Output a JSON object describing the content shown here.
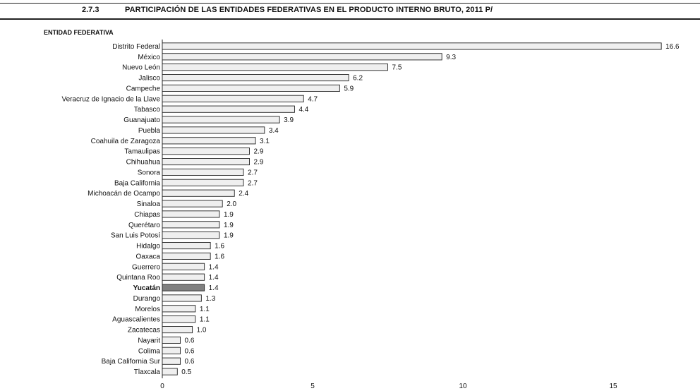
{
  "header": {
    "section_number": "2.7.3",
    "title": "PARTICIPACIÓN DE LAS ENTIDADES FEDERATIVAS EN EL PRODUCTO INTERNO BRUTO, 2011 P/"
  },
  "colors": {
    "bar_fill": "#efefef",
    "highlight_fill": "#808080",
    "stroke": "#222222"
  },
  "chart_data": {
    "type": "bar",
    "orientation": "horizontal",
    "category_header": "ENTIDAD FEDERATIVA",
    "categories": [
      "Distrito Federal",
      "México",
      "Nuevo León",
      "Jalisco",
      "Campeche",
      "Veracruz de Ignacio de la Llave",
      "Tabasco",
      "Guanajuato",
      "Puebla",
      "Coahuila de Zaragoza",
      "Tamaulipas",
      "Chihuahua",
      "Sonora",
      "Baja California",
      "Michoacán de Ocampo",
      "Sinaloa",
      "Chiapas",
      "Querétaro",
      "San Luis Potosí",
      "Hidalgo",
      "Oaxaca",
      "Guerrero",
      "Quintana Roo",
      "Yucatán",
      "Durango",
      "Morelos",
      "Aguascalientes",
      "Zacatecas",
      "Nayarit",
      "Colima",
      "Baja California Sur",
      "Tlaxcala"
    ],
    "values": [
      16.6,
      9.3,
      7.5,
      6.2,
      5.9,
      4.7,
      4.4,
      3.9,
      3.4,
      3.1,
      2.9,
      2.9,
      2.7,
      2.7,
      2.4,
      2.0,
      1.9,
      1.9,
      1.9,
      1.6,
      1.6,
      1.4,
      1.4,
      1.4,
      1.3,
      1.1,
      1.1,
      1.0,
      0.6,
      0.6,
      0.6,
      0.5
    ],
    "value_labels": [
      "16.6",
      "9.3",
      "7.5",
      "6.2",
      "5.9",
      "4.7",
      "4.4",
      "3.9",
      "3.4",
      "3.1",
      "2.9",
      "2.9",
      "2.7",
      "2.7",
      "2.4",
      "2.0",
      "1.9",
      "1.9",
      "1.9",
      "1.6",
      "1.6",
      "1.4",
      "1.4",
      "1.4",
      "1.3",
      "1.1",
      "1.1",
      "1.0",
      "0.6",
      "0.6",
      "0.6",
      "0.5"
    ],
    "highlighted": "Yucatán",
    "xlim": [
      0,
      17
    ],
    "xticks": [
      0,
      5,
      10,
      15
    ],
    "xtick_labels": [
      "0",
      "5",
      "10",
      "15"
    ],
    "grid": false,
    "legend": "none"
  }
}
